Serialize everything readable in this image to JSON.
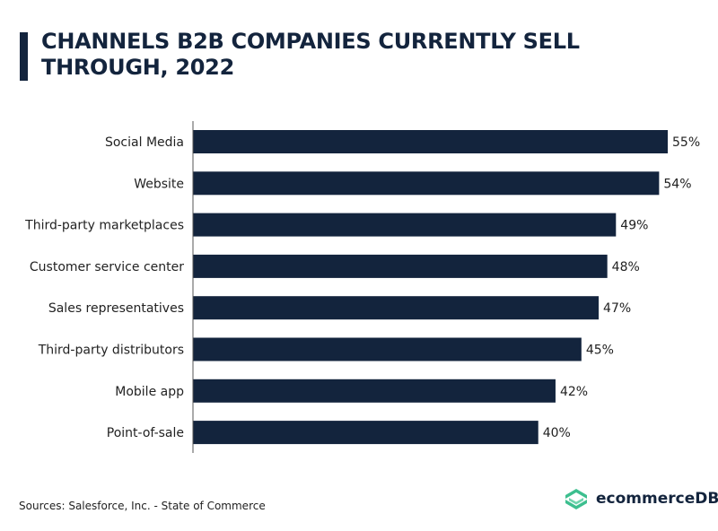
{
  "chart_data": {
    "type": "bar",
    "orientation": "horizontal",
    "title": "CHANNELS B2B COMPANIES CURRENTLY SELL THROUGH, 2022",
    "categories": [
      "Social Media",
      "Website",
      "Third-party marketplaces",
      "Customer service center",
      "Sales representatives",
      "Third-party distributors",
      "Mobile app",
      "Point-of-sale"
    ],
    "values": [
      55,
      54,
      49,
      48,
      47,
      45,
      42,
      40
    ],
    "value_suffix": "%",
    "xlim": [
      0,
      55
    ],
    "grid": false,
    "bar_color": "#13243d"
  },
  "source": "Sources:  Salesforce, Inc. - State of Commerce",
  "logo": {
    "text": "ecommerceDB",
    "color": "#3dbf8f"
  }
}
